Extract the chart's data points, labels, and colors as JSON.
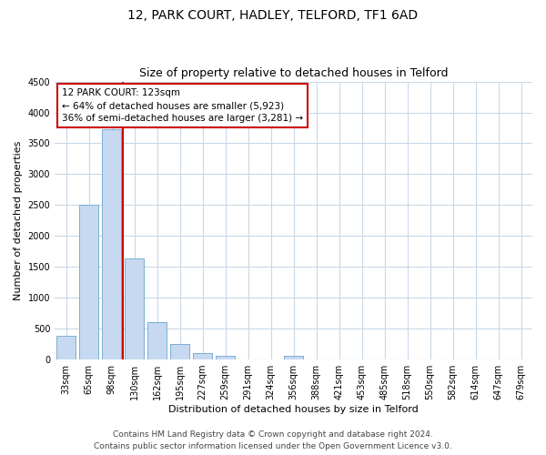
{
  "title": "12, PARK COURT, HADLEY, TELFORD, TF1 6AD",
  "subtitle": "Size of property relative to detached houses in Telford",
  "xlabel": "Distribution of detached houses by size in Telford",
  "ylabel": "Number of detached properties",
  "bar_labels": [
    "33sqm",
    "65sqm",
    "98sqm",
    "130sqm",
    "162sqm",
    "195sqm",
    "227sqm",
    "259sqm",
    "291sqm",
    "324sqm",
    "356sqm",
    "388sqm",
    "421sqm",
    "453sqm",
    "485sqm",
    "518sqm",
    "550sqm",
    "582sqm",
    "614sqm",
    "647sqm",
    "679sqm"
  ],
  "bar_values": [
    390,
    2500,
    3730,
    1640,
    600,
    245,
    100,
    60,
    0,
    0,
    55,
    0,
    0,
    0,
    0,
    0,
    0,
    0,
    0,
    0,
    0
  ],
  "bar_color": "#c6d9f0",
  "bar_edge_color": "#7bafd4",
  "property_line_color": "#cc0000",
  "property_line_xindex": 2,
  "ylim": [
    0,
    4500
  ],
  "yticks": [
    0,
    500,
    1000,
    1500,
    2000,
    2500,
    3000,
    3500,
    4000,
    4500
  ],
  "annotation_title": "12 PARK COURT: 123sqm",
  "annotation_line1": "← 64% of detached houses are smaller (5,923)",
  "annotation_line2": "36% of semi-detached houses are larger (3,281) →",
  "annotation_box_color": "#ffffff",
  "annotation_box_edge": "#cc0000",
  "footnote1": "Contains HM Land Registry data © Crown copyright and database right 2024.",
  "footnote2": "Contains public sector information licensed under the Open Government Licence v3.0.",
  "bg_color": "#ffffff",
  "grid_color": "#c8d8e8",
  "title_fontsize": 10,
  "subtitle_fontsize": 9,
  "axis_label_fontsize": 8,
  "tick_fontsize": 7,
  "annotation_fontsize": 7.5,
  "footnote_fontsize": 6.5
}
